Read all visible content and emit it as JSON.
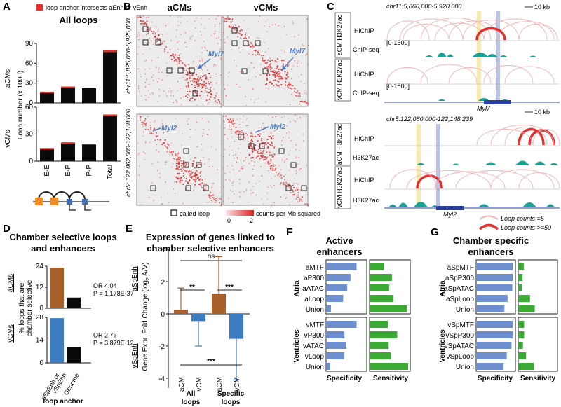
{
  "colors": {
    "black": "#0a0a0a",
    "red": "#e8312a",
    "orange": "#f28a2a",
    "blue_node": "#3f6fb5",
    "brown": "#a85f2a",
    "vcm_blue": "#3c7cc2",
    "spec_blue": "#6d8fd0",
    "sens_green": "#3aaa35",
    "teal": "#1aa195",
    "hic_bg": "#ececec",
    "arc_light": "#f2b3b3",
    "arc_heavy": "#e03131",
    "myl_label": "#4d7cc6",
    "yellow_hl": "#f7e59a",
    "blue_hl": "#a9b4e0"
  },
  "panelA": {
    "letter": "A",
    "legend": "loop anchor intersects aEnh or vEnh",
    "title": "All loops",
    "ylabel": "Loop number (x 1000)",
    "row_labels": [
      "aCMs",
      "vCMs"
    ],
    "categories": [
      "E-E",
      "E-P",
      "P-P",
      "Total"
    ],
    "chart_data": [
      {
        "type": "bar",
        "row": "aCMs",
        "categories": [
          "E-E",
          "E-P",
          "P-P",
          "Total"
        ],
        "values": [
          17.0,
          24.8,
          22.3,
          79.3
        ],
        "red_cap": [
          1.0,
          1.5,
          0.0,
          2.5
        ],
        "ylim": [
          0,
          90
        ],
        "yticks": [
          0,
          30,
          60,
          90
        ],
        "ytick_labels": [
          "0",
          "30",
          "60",
          "90"
        ]
      },
      {
        "type": "bar",
        "row": "vCMs",
        "categories": [
          "E-E",
          "E-P",
          "P-P",
          "Total"
        ],
        "values": [
          14.5,
          20.8,
          18.5,
          51.8
        ],
        "red_cap": [
          0.8,
          1.0,
          0.0,
          2.0
        ],
        "ylim": [
          0,
          60
        ],
        "yticks": [
          0,
          30,
          60
        ],
        "ytick_labels": [
          "0",
          "30",
          "60"
        ]
      }
    ]
  },
  "panelB": {
    "letter": "B",
    "col_titles": [
      "aCMs",
      "vCMs"
    ],
    "row_coords": [
      "chr11:5,825,000-5,925,000",
      "chr5: 122,062,000-122,188,000"
    ],
    "gene_top": "Myl7",
    "gene_bottom": "Myl2",
    "legend_loop": "called loop",
    "legend_counts": "counts per Mb squared",
    "scale_min": "0",
    "scale_max": "2"
  },
  "panelC": {
    "letter": "C",
    "top_region": "chr11:5,860,000-5,920,000",
    "bottom_region": "chr5:122,080,000-122,148,239",
    "scale": "10 kb",
    "group_labels": [
      "aCM H3K27ac",
      "vCM H3K27ac",
      "aCM H3K27ac",
      "vCM H3K27ac"
    ],
    "track_hichip": "HiChIP",
    "track_chipseq": "ChIP-seq",
    "track_h3k27ac": "H3K27ac",
    "range_label": "[0-1500]",
    "gene_top": "Myl7",
    "gene_bottom": "Myl2",
    "legend_low": "Loop counts =5",
    "legend_high": "Loop counts >=50"
  },
  "panelD": {
    "letter": "D",
    "title_line1": "Chamber selective loops",
    "title_line2": "and enhancers",
    "ylabel_line1": "% loops that are",
    "ylabel_line2": "chamber selective",
    "row_labels": [
      "aCMs",
      "vCMs"
    ],
    "x_label1": "aSpEnh or",
    "x_label2": "vSpEnh",
    "x_label3": "Genome",
    "xaxis_title": "loop anchor",
    "chart_data": [
      {
        "type": "bar",
        "row": "aCMs",
        "categories": [
          "aSpEnh or vSpEnh",
          "Genome"
        ],
        "values": [
          23.2,
          6.1
        ],
        "ylim": [
          0,
          24
        ],
        "yticks": [
          0,
          12,
          24
        ],
        "ytick_labels": [
          "0",
          "12",
          "24"
        ],
        "or_text": "OR 4.04",
        "p_text": "P = 1.178E-37"
      },
      {
        "type": "bar",
        "row": "vCMs",
        "categories": [
          "aSpEnh or vSpEnh",
          "Genome"
        ],
        "values": [
          27.5,
          9.8
        ],
        "ylim": [
          0,
          28
        ],
        "yticks": [
          0,
          14,
          28
        ],
        "ytick_labels": [
          "0",
          "14",
          "28"
        ],
        "or_text": "OR 2.76",
        "p_text": "P = 3.879E-12"
      }
    ]
  },
  "panelE": {
    "letter": "E",
    "title_line1": "Expression of genes linked to",
    "title_line2": "chamber selective enhancers",
    "ylabel": "Gene Expr. Fold Change (log2 A/V)",
    "ylabel_main": "Gene Expr. Fold Change (log",
    "ylabel_sub": "2",
    "ylabel_tail": " A/V)",
    "side_top": "aSpEnh",
    "side_bottom": "vSpEnh",
    "sig_ns": "ns",
    "sig_2": "**",
    "sig_3": "***",
    "x_cm": [
      "aCM",
      "vCM",
      "aCM",
      "vCM"
    ],
    "group_labels": [
      "All",
      "loops",
      "Specific",
      "loops"
    ],
    "chart_data": {
      "type": "bar",
      "categories": [
        "aCM All loops",
        "vCM All loops",
        "aCM Specific loops",
        "vCM Specific loops"
      ],
      "values": [
        0.25,
        -0.45,
        1.25,
        -1.55
      ],
      "err": [
        1.35,
        1.55,
        2.3,
        2.55
      ],
      "ylim": [
        -5,
        4
      ],
      "yticks": [
        -4,
        -2,
        0,
        2,
        4
      ],
      "ytick_labels": [
        "-4",
        "-2",
        "0",
        "2",
        "4"
      ]
    }
  },
  "panelF": {
    "letter": "F",
    "title_line1": "Active",
    "title_line2": "enhancers",
    "group_labels": [
      "Atria",
      "Ventricles"
    ],
    "xlabels": [
      "Specificity",
      "Sensitivity"
    ],
    "chart_data": {
      "type": "bar",
      "categories": [
        "aMTF",
        "aP300",
        "aATAC",
        "aLoop",
        "Union",
        "vMTF",
        "vP300",
        "vATAC",
        "vLoop",
        "Union"
      ],
      "specificity": [
        0.75,
        0.6,
        0.52,
        0.42,
        0.12,
        0.75,
        0.45,
        0.5,
        0.45,
        0.1
      ],
      "sensitivity": [
        0.35,
        0.55,
        0.48,
        0.58,
        0.92,
        0.45,
        0.68,
        0.47,
        0.52,
        0.95
      ]
    }
  },
  "panelG": {
    "letter": "G",
    "title_line1": "Chamber specific",
    "title_line2": "enhancers",
    "group_labels": [
      "Atria",
      "Ventricles"
    ],
    "xlabels": [
      "Specificity",
      "Sensitivity"
    ],
    "chart_data": {
      "type": "bar",
      "categories": [
        "aSpMTF",
        "aSpP300",
        "aSpATAC",
        "aSpLoop",
        "Union",
        "vSpMTF",
        "vSpP300",
        "vSpATAC",
        "vSpLoop",
        "Union"
      ],
      "specificity": [
        0.93,
        0.93,
        0.92,
        0.8,
        0.72,
        0.93,
        0.93,
        0.9,
        0.78,
        0.7
      ],
      "sensitivity": [
        0.14,
        0.11,
        0.09,
        0.3,
        0.42,
        0.15,
        0.15,
        0.12,
        0.2,
        0.4
      ]
    }
  }
}
